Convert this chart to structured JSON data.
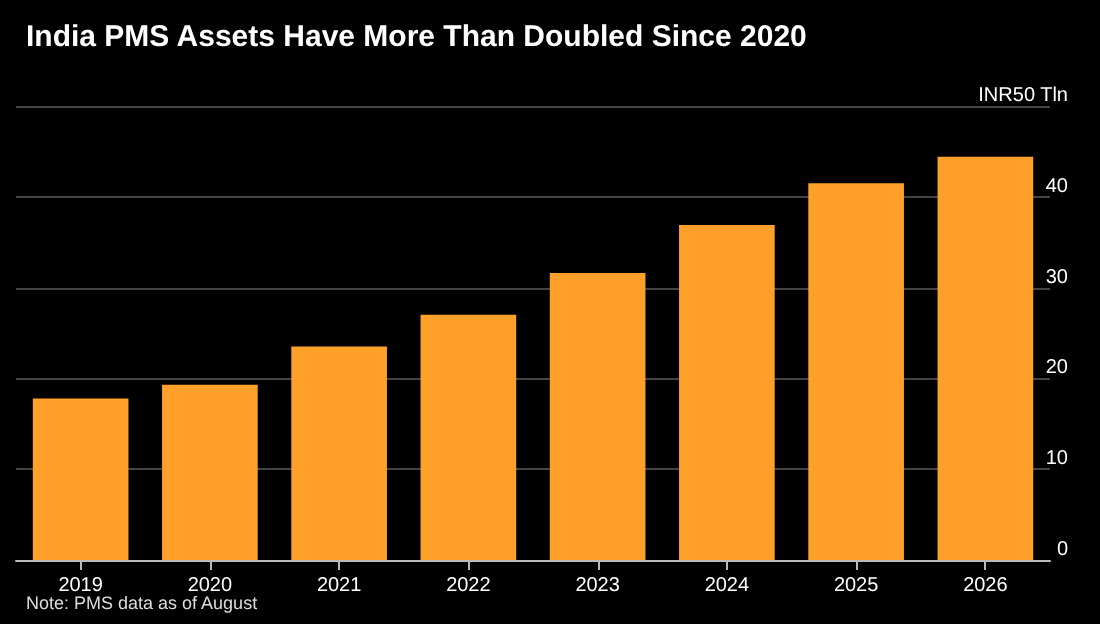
{
  "chart_data": {
    "type": "bar",
    "title": "India PMS Assets Have More Than Doubled Since 2020",
    "categories": [
      "2019",
      "2020",
      "2021",
      "2022",
      "2023",
      "2024",
      "2025",
      "2026"
    ],
    "values": [
      17.8,
      19.3,
      23.5,
      27.0,
      31.6,
      36.9,
      41.5,
      44.4
    ],
    "color": "#ffa02a",
    "ylim": [
      0,
      50
    ],
    "yticks": [
      0,
      10,
      20,
      30,
      40,
      {
        "value": 50,
        "label": "INR50 Tln"
      }
    ],
    "grid": "y",
    "annotations": [
      "Note: PMS data as of August"
    ]
  }
}
